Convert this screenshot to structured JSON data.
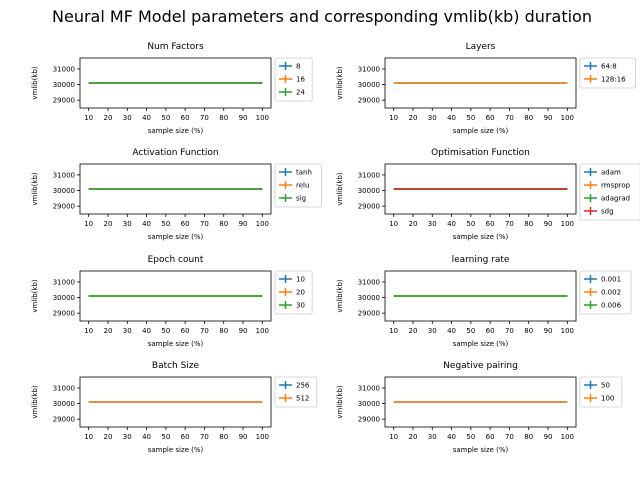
{
  "figure": {
    "title": "Neural MF Model parameters and corresponding vmlib(kb) duration"
  },
  "series_colors": [
    "#1f77b4",
    "#ff7f0e",
    "#2ca02c",
    "#d62728"
  ],
  "chart_data": [
    {
      "type": "line",
      "title": "Num Factors",
      "xlabel": "sample size (%)",
      "ylabel": "vmlib(kb)",
      "x": [
        10,
        20,
        30,
        40,
        50,
        60,
        70,
        80,
        90,
        100
      ],
      "xticks": [
        10,
        20,
        30,
        40,
        50,
        60,
        70,
        80,
        90,
        100
      ],
      "yticks": [
        29000,
        30000,
        31000
      ],
      "ylim": [
        28500,
        31700
      ],
      "legend_position": "outside-right",
      "series": [
        {
          "name": "8",
          "values": [
            30100,
            30100,
            30100,
            30100,
            30100,
            30100,
            30100,
            30100,
            30100,
            30100
          ]
        },
        {
          "name": "16",
          "values": [
            30100,
            30100,
            30100,
            30100,
            30100,
            30100,
            30100,
            30100,
            30100,
            30100
          ]
        },
        {
          "name": "24",
          "values": [
            30100,
            30100,
            30100,
            30100,
            30100,
            30100,
            30100,
            30100,
            30100,
            30100
          ]
        }
      ]
    },
    {
      "type": "line",
      "title": "Layers",
      "xlabel": "sample size (%)",
      "ylabel": "vmlib(kb)",
      "x": [
        10,
        20,
        30,
        40,
        50,
        60,
        70,
        80,
        90,
        100
      ],
      "xticks": [
        10,
        20,
        30,
        40,
        50,
        60,
        70,
        80,
        90,
        100
      ],
      "yticks": [
        29000,
        30000,
        31000
      ],
      "ylim": [
        28500,
        31700
      ],
      "legend_position": "outside-right",
      "series": [
        {
          "name": "64:8",
          "values": [
            30100,
            30100,
            30100,
            30100,
            30100,
            30100,
            30100,
            30100,
            30100,
            30100
          ]
        },
        {
          "name": "128:16",
          "values": [
            30100,
            30100,
            30100,
            30100,
            30100,
            30100,
            30100,
            30100,
            30100,
            30100
          ]
        }
      ]
    },
    {
      "type": "line",
      "title": "Activation Function",
      "xlabel": "sample size (%)",
      "ylabel": "vmlib(kb)",
      "x": [
        10,
        20,
        30,
        40,
        50,
        60,
        70,
        80,
        90,
        100
      ],
      "xticks": [
        10,
        20,
        30,
        40,
        50,
        60,
        70,
        80,
        90,
        100
      ],
      "yticks": [
        29000,
        30000,
        31000
      ],
      "ylim": [
        28500,
        31700
      ],
      "legend_position": "outside-right",
      "series": [
        {
          "name": "tanh",
          "values": [
            30100,
            30100,
            30100,
            30100,
            30100,
            30100,
            30100,
            30100,
            30100,
            30100
          ]
        },
        {
          "name": "relu",
          "values": [
            30100,
            30100,
            30100,
            30100,
            30100,
            30100,
            30100,
            30100,
            30100,
            30100
          ]
        },
        {
          "name": "sig",
          "values": [
            30100,
            30100,
            30100,
            30100,
            30100,
            30100,
            30100,
            30100,
            30100,
            30100
          ]
        }
      ]
    },
    {
      "type": "line",
      "title": "Optimisation Function",
      "xlabel": "sample size (%)",
      "ylabel": "vmlib(kb)",
      "x": [
        10,
        20,
        30,
        40,
        50,
        60,
        70,
        80,
        90,
        100
      ],
      "xticks": [
        10,
        20,
        30,
        40,
        50,
        60,
        70,
        80,
        90,
        100
      ],
      "yticks": [
        29000,
        30000,
        31000
      ],
      "ylim": [
        28500,
        31700
      ],
      "legend_position": "outside-right",
      "series": [
        {
          "name": "adam",
          "values": [
            30100,
            30100,
            30100,
            30100,
            30100,
            30100,
            30100,
            30100,
            30100,
            30100
          ]
        },
        {
          "name": "rmsprop",
          "values": [
            30100,
            30100,
            30100,
            30100,
            30100,
            30100,
            30100,
            30100,
            30100,
            30100
          ]
        },
        {
          "name": "adagrad",
          "values": [
            30100,
            30100,
            30100,
            30100,
            30100,
            30100,
            30100,
            30100,
            30100,
            30100
          ]
        },
        {
          "name": "sdg",
          "values": [
            30100,
            30100,
            30100,
            30100,
            30100,
            30100,
            30100,
            30100,
            30100,
            30100
          ]
        }
      ]
    },
    {
      "type": "line",
      "title": "Epoch count",
      "xlabel": "sample size (%)",
      "ylabel": "vmlib(kb)",
      "x": [
        10,
        20,
        30,
        40,
        50,
        60,
        70,
        80,
        90,
        100
      ],
      "xticks": [
        10,
        20,
        30,
        40,
        50,
        60,
        70,
        80,
        90,
        100
      ],
      "yticks": [
        29000,
        30000,
        31000
      ],
      "ylim": [
        28500,
        31700
      ],
      "legend_position": "outside-right",
      "series": [
        {
          "name": "10",
          "values": [
            30100,
            30100,
            30100,
            30100,
            30100,
            30100,
            30100,
            30100,
            30100,
            30100
          ]
        },
        {
          "name": "20",
          "values": [
            30100,
            30100,
            30100,
            30100,
            30100,
            30100,
            30100,
            30100,
            30100,
            30100
          ]
        },
        {
          "name": "30",
          "values": [
            30100,
            30100,
            30100,
            30100,
            30100,
            30100,
            30100,
            30100,
            30100,
            30100
          ]
        }
      ]
    },
    {
      "type": "line",
      "title": "learning rate",
      "xlabel": "sample size (%)",
      "ylabel": "vmlib(kb)",
      "x": [
        10,
        20,
        30,
        40,
        50,
        60,
        70,
        80,
        90,
        100
      ],
      "xticks": [
        10,
        20,
        30,
        40,
        50,
        60,
        70,
        80,
        90,
        100
      ],
      "yticks": [
        29000,
        30000,
        31000
      ],
      "ylim": [
        28500,
        31700
      ],
      "legend_position": "outside-right",
      "series": [
        {
          "name": "0.001",
          "values": [
            30100,
            30100,
            30100,
            30100,
            30100,
            30100,
            30100,
            30100,
            30100,
            30100
          ]
        },
        {
          "name": "0.002",
          "values": [
            30100,
            30100,
            30100,
            30100,
            30100,
            30100,
            30100,
            30100,
            30100,
            30100
          ]
        },
        {
          "name": "0.006",
          "values": [
            30100,
            30100,
            30100,
            30100,
            30100,
            30100,
            30100,
            30100,
            30100,
            30100
          ]
        }
      ]
    },
    {
      "type": "line",
      "title": "Batch Size",
      "xlabel": "sample size (%)",
      "ylabel": "vmlib(kb)",
      "x": [
        10,
        20,
        30,
        40,
        50,
        60,
        70,
        80,
        90,
        100
      ],
      "xticks": [
        10,
        20,
        30,
        40,
        50,
        60,
        70,
        80,
        90,
        100
      ],
      "yticks": [
        29000,
        30000,
        31000
      ],
      "ylim": [
        28500,
        31700
      ],
      "legend_position": "outside-right",
      "series": [
        {
          "name": "256",
          "values": [
            30100,
            30100,
            30100,
            30100,
            30100,
            30100,
            30100,
            30100,
            30100,
            30100
          ]
        },
        {
          "name": "512",
          "values": [
            30100,
            30100,
            30100,
            30100,
            30100,
            30100,
            30100,
            30100,
            30100,
            30100
          ]
        }
      ]
    },
    {
      "type": "line",
      "title": "Negative pairing",
      "xlabel": "sample size (%)",
      "ylabel": "vmlib(kb)",
      "x": [
        10,
        20,
        30,
        40,
        50,
        60,
        70,
        80,
        90,
        100
      ],
      "xticks": [
        10,
        20,
        30,
        40,
        50,
        60,
        70,
        80,
        90,
        100
      ],
      "yticks": [
        29000,
        30000,
        31000
      ],
      "ylim": [
        28500,
        31700
      ],
      "legend_position": "outside-right",
      "series": [
        {
          "name": "50",
          "values": [
            30100,
            30100,
            30100,
            30100,
            30100,
            30100,
            30100,
            30100,
            30100,
            30100
          ]
        },
        {
          "name": "100",
          "values": [
            30100,
            30100,
            30100,
            30100,
            30100,
            30100,
            30100,
            30100,
            30100,
            30100
          ]
        }
      ]
    }
  ]
}
